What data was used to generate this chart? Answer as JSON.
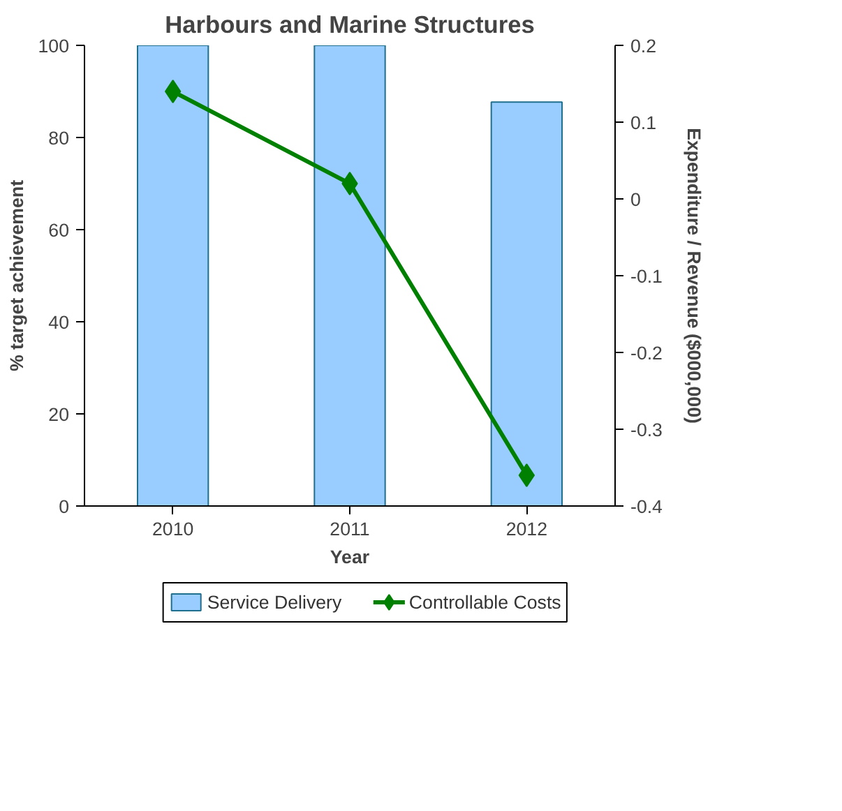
{
  "chart_data": {
    "type": "bar",
    "title": "Harbours and Marine Structures",
    "xlabel": "Year",
    "ylabel": "% target achievement",
    "y2label": "Expenditure / Revenue ($000,000)",
    "categories": [
      "2010",
      "2011",
      "2012"
    ],
    "series": [
      {
        "name": "Service Delivery",
        "color": "#99ccff",
        "values": [
          100,
          100,
          87.7
        ]
      },
      {
        "name": "Controllable Costs",
        "type": "line",
        "axis": "y2",
        "color": "#008000",
        "marker": "diamond",
        "values": [
          0.14,
          0.02,
          -0.36
        ]
      }
    ],
    "ylim": [
      0,
      100
    ],
    "yticks": [
      0,
      20,
      40,
      60,
      80,
      100
    ],
    "y2lim": [
      -0.4,
      0.2
    ],
    "y2ticks": [
      -0.4,
      -0.3,
      -0.2,
      -0.1,
      0,
      0.1,
      0.2
    ],
    "grid": false,
    "legend": "bottom"
  }
}
